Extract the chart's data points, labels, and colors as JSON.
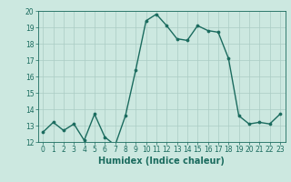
{
  "x": [
    0,
    1,
    2,
    3,
    4,
    5,
    6,
    7,
    8,
    9,
    10,
    11,
    12,
    13,
    14,
    15,
    16,
    17,
    18,
    19,
    20,
    21,
    22,
    23
  ],
  "y": [
    12.6,
    13.2,
    12.7,
    13.1,
    12.1,
    13.7,
    12.3,
    11.8,
    13.6,
    16.4,
    19.4,
    19.8,
    19.1,
    18.3,
    18.2,
    19.1,
    18.8,
    18.7,
    17.1,
    13.6,
    13.1,
    13.2,
    13.1,
    13.7
  ],
  "line_color": "#1a6b5e",
  "marker": "o",
  "markersize": 2.2,
  "linewidth": 1.0,
  "bg_color": "#cce8e0",
  "grid_color": "#aaccc4",
  "xlabel": "Humidex (Indice chaleur)",
  "xlabel_fontsize": 7,
  "ylim": [
    12,
    20
  ],
  "xlim": [
    -0.5,
    23.5
  ],
  "yticks": [
    12,
    13,
    14,
    15,
    16,
    17,
    18,
    19,
    20
  ],
  "xticks": [
    0,
    1,
    2,
    3,
    4,
    5,
    6,
    7,
    8,
    9,
    10,
    11,
    12,
    13,
    14,
    15,
    16,
    17,
    18,
    19,
    20,
    21,
    22,
    23
  ],
  "tick_fontsize": 5.5,
  "tick_color": "#1a6b5e"
}
